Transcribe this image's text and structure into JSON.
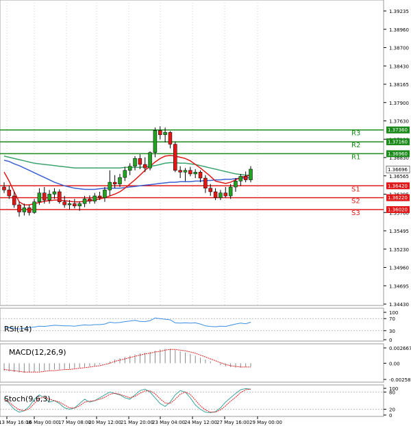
{
  "chart_data": {
    "type": "candlestick",
    "main": {
      "y_ticks": [
        "1.39235",
        "1.38960",
        "1.38700",
        "1.38430",
        "1.38165",
        "1.37900",
        "1.37630",
        "1.37100",
        "1.36830",
        "1.36565",
        "1.36295",
        "1.35760",
        "1.35495",
        "1.35230",
        "1.34960",
        "1.34695",
        "1.34430"
      ],
      "ylim": [
        1.3443,
        1.395
      ],
      "current_price": {
        "label": "1.36696",
        "value": 1.36696
      },
      "levels": [
        {
          "name": "R3",
          "label": "1.37360",
          "value": 1.3736,
          "color": "#1a8a1a"
        },
        {
          "name": "R2",
          "label": "1.37160",
          "value": 1.3716,
          "color": "#1a8a1a"
        },
        {
          "name": "R1",
          "label": "1.36960",
          "value": 1.3696,
          "color": "#1a8a1a"
        },
        {
          "name": "S1",
          "label": "1.36420",
          "value": 1.3642,
          "color": "#e01818"
        },
        {
          "name": "S2",
          "label": "1.36220",
          "value": 1.3622,
          "color": "#e01818"
        },
        {
          "name": "S3",
          "label": "1.36020",
          "value": 1.3602,
          "color": "#e01818"
        }
      ],
      "candles": [
        {
          "o": 1.364,
          "h": 1.3648,
          "l": 1.363,
          "c": 1.3635
        },
        {
          "o": 1.3635,
          "h": 1.3642,
          "l": 1.362,
          "c": 1.3625
        },
        {
          "o": 1.3625,
          "h": 1.3632,
          "l": 1.3605,
          "c": 1.361
        },
        {
          "o": 1.361,
          "h": 1.3615,
          "l": 1.359,
          "c": 1.3598
        },
        {
          "o": 1.3598,
          "h": 1.3612,
          "l": 1.3592,
          "c": 1.3605
        },
        {
          "o": 1.3605,
          "h": 1.361,
          "l": 1.3592,
          "c": 1.3597
        },
        {
          "o": 1.3597,
          "h": 1.362,
          "l": 1.3595,
          "c": 1.3615
        },
        {
          "o": 1.3615,
          "h": 1.3638,
          "l": 1.361,
          "c": 1.363
        },
        {
          "o": 1.363,
          "h": 1.364,
          "l": 1.3612,
          "c": 1.3618
        },
        {
          "o": 1.3618,
          "h": 1.3635,
          "l": 1.3612,
          "c": 1.3628
        },
        {
          "o": 1.3628,
          "h": 1.3638,
          "l": 1.362,
          "c": 1.3632
        },
        {
          "o": 1.3632,
          "h": 1.3636,
          "l": 1.3612,
          "c": 1.3615
        },
        {
          "o": 1.3615,
          "h": 1.3625,
          "l": 1.3605,
          "c": 1.361
        },
        {
          "o": 1.361,
          "h": 1.3618,
          "l": 1.3602,
          "c": 1.3612
        },
        {
          "o": 1.3612,
          "h": 1.362,
          "l": 1.3604,
          "c": 1.3608
        },
        {
          "o": 1.3608,
          "h": 1.3616,
          "l": 1.36,
          "c": 1.3612
        },
        {
          "o": 1.3612,
          "h": 1.3625,
          "l": 1.3606,
          "c": 1.362
        },
        {
          "o": 1.362,
          "h": 1.3626,
          "l": 1.3612,
          "c": 1.3616
        },
        {
          "o": 1.3616,
          "h": 1.363,
          "l": 1.3612,
          "c": 1.3625
        },
        {
          "o": 1.3625,
          "h": 1.3632,
          "l": 1.3618,
          "c": 1.3622
        },
        {
          "o": 1.3622,
          "h": 1.364,
          "l": 1.3615,
          "c": 1.3635
        },
        {
          "o": 1.3635,
          "h": 1.3668,
          "l": 1.3625,
          "c": 1.3648
        },
        {
          "o": 1.3648,
          "h": 1.366,
          "l": 1.3638,
          "c": 1.3645
        },
        {
          "o": 1.3645,
          "h": 1.3662,
          "l": 1.364,
          "c": 1.3656
        },
        {
          "o": 1.3656,
          "h": 1.3674,
          "l": 1.365,
          "c": 1.3668
        },
        {
          "o": 1.3668,
          "h": 1.368,
          "l": 1.366,
          "c": 1.3675
        },
        {
          "o": 1.3675,
          "h": 1.3692,
          "l": 1.3668,
          "c": 1.3688
        },
        {
          "o": 1.3688,
          "h": 1.3695,
          "l": 1.367,
          "c": 1.3678
        },
        {
          "o": 1.3678,
          "h": 1.369,
          "l": 1.3665,
          "c": 1.3672
        },
        {
          "o": 1.3672,
          "h": 1.37,
          "l": 1.3668,
          "c": 1.3698
        },
        {
          "o": 1.3698,
          "h": 1.374,
          "l": 1.369,
          "c": 1.3735
        },
        {
          "o": 1.3735,
          "h": 1.3742,
          "l": 1.372,
          "c": 1.3728
        },
        {
          "o": 1.3728,
          "h": 1.374,
          "l": 1.3715,
          "c": 1.3732
        },
        {
          "o": 1.3732,
          "h": 1.3734,
          "l": 1.3705,
          "c": 1.3712
        },
        {
          "o": 1.3712,
          "h": 1.3716,
          "l": 1.3665,
          "c": 1.3668
        },
        {
          "o": 1.3668,
          "h": 1.3675,
          "l": 1.3655,
          "c": 1.3665
        },
        {
          "o": 1.3665,
          "h": 1.3672,
          "l": 1.365,
          "c": 1.3668
        },
        {
          "o": 1.3668,
          "h": 1.3674,
          "l": 1.3658,
          "c": 1.3662
        },
        {
          "o": 1.3662,
          "h": 1.367,
          "l": 1.3655,
          "c": 1.3665
        },
        {
          "o": 1.3665,
          "h": 1.3668,
          "l": 1.3648,
          "c": 1.3655
        },
        {
          "o": 1.3655,
          "h": 1.366,
          "l": 1.363,
          "c": 1.3638
        },
        {
          "o": 1.3638,
          "h": 1.3645,
          "l": 1.3625,
          "c": 1.3632
        },
        {
          "o": 1.3632,
          "h": 1.3638,
          "l": 1.3618,
          "c": 1.3622
        },
        {
          "o": 1.3622,
          "h": 1.3635,
          "l": 1.3618,
          "c": 1.363
        },
        {
          "o": 1.363,
          "h": 1.364,
          "l": 1.3622,
          "c": 1.3625
        },
        {
          "o": 1.3625,
          "h": 1.3645,
          "l": 1.362,
          "c": 1.364
        },
        {
          "o": 1.364,
          "h": 1.3655,
          "l": 1.3632,
          "c": 1.365
        },
        {
          "o": 1.365,
          "h": 1.3662,
          "l": 1.3642,
          "c": 1.3658
        },
        {
          "o": 1.3658,
          "h": 1.3666,
          "l": 1.3648,
          "c": 1.3652
        },
        {
          "o": 1.3652,
          "h": 1.3675,
          "l": 1.3648,
          "c": 1.367
        }
      ],
      "ma_red": [
        1.3665,
        1.365,
        1.3632,
        1.3615,
        1.361,
        1.361,
        1.3612,
        1.3614,
        1.3616,
        1.3617,
        1.3618,
        1.3618,
        1.3617,
        1.3616,
        1.3615,
        1.3615,
        1.3616,
        1.3617,
        1.3618,
        1.362,
        1.3622,
        1.3625,
        1.3628,
        1.3632,
        1.3638,
        1.3645,
        1.3652,
        1.366,
        1.3668,
        1.3675,
        1.3682,
        1.3688,
        1.3692,
        1.3693,
        1.3692,
        1.369,
        1.3688,
        1.3684,
        1.3678,
        1.3672,
        1.3665,
        1.3658,
        1.365,
        1.3648,
        1.3646,
        1.3648,
        1.3652,
        1.3656,
        1.3658,
        1.366
      ],
      "ma_green": [
        1.3692,
        1.369,
        1.3688,
        1.3686,
        1.3684,
        1.3682,
        1.368,
        1.3679,
        1.3678,
        1.3677,
        1.3676,
        1.3675,
        1.3674,
        1.3673,
        1.3672,
        1.3672,
        1.3672,
        1.3672,
        1.3672,
        1.3672,
        1.3672,
        1.3672,
        1.3672,
        1.3672,
        1.3673,
        1.3673,
        1.3673,
        1.3673,
        1.3674,
        1.3675,
        1.3676,
        1.3678,
        1.368,
        1.3681,
        1.3681,
        1.368,
        1.368,
        1.3679,
        1.3678,
        1.3676,
        1.3674,
        1.3672,
        1.367,
        1.3668,
        1.3666,
        1.3664,
        1.3662,
        1.3661,
        1.366,
        1.366
      ],
      "ma_blue": [
        1.3685,
        1.3683,
        1.3679,
        1.3676,
        1.3672,
        1.3668,
        1.3664,
        1.366,
        1.3656,
        1.3652,
        1.3648,
        1.3645,
        1.3642,
        1.364,
        1.3638,
        1.3637,
        1.3636,
        1.3636,
        1.3636,
        1.3637,
        1.3638,
        1.3638,
        1.3638,
        1.3638,
        1.3639,
        1.364,
        1.3641,
        1.3642,
        1.3643,
        1.3644,
        1.3645,
        1.3646,
        1.3647,
        1.3648,
        1.3648,
        1.3649,
        1.3649,
        1.3649,
        1.365,
        1.365,
        1.3651,
        1.3651,
        1.3652,
        1.3652,
        1.3653,
        1.3653,
        1.3654,
        1.3655,
        1.3655,
        1.3656
      ]
    },
    "rsi": {
      "title": "RSI(14)",
      "y_ticks": [
        "100",
        "70",
        "30",
        "0"
      ],
      "ylim": [
        0,
        100
      ],
      "values": [
        42,
        40,
        38,
        36,
        38,
        40,
        42,
        45,
        44,
        46,
        48,
        47,
        46,
        46,
        45,
        47,
        49,
        48,
        50,
        50,
        52,
        58,
        56,
        57,
        60,
        62,
        64,
        61,
        60,
        63,
        72,
        70,
        68,
        66,
        56,
        55,
        56,
        55,
        56,
        52,
        46,
        44,
        43,
        45,
        44,
        48,
        52,
        55,
        53,
        58
      ]
    },
    "macd": {
      "title": "MACD(12,26,9)",
      "y_ticks": [
        "0.002667",
        "0.00",
        "-0.002586"
      ],
      "ylim": [
        -0.002586,
        0.002667
      ],
      "histogram": [
        -0.0012,
        -0.0013,
        -0.0014,
        -0.0015,
        -0.0015,
        -0.0015,
        -0.0014,
        -0.0013,
        -0.0012,
        -0.0011,
        -0.001,
        -0.001,
        -0.0009,
        -0.0009,
        -0.0008,
        -0.0007,
        -0.0006,
        -0.0005,
        -0.0004,
        -0.0002,
        0.0,
        0.0003,
        0.0006,
        0.0008,
        0.001,
        0.0012,
        0.0014,
        0.0016,
        0.0017,
        0.0018,
        0.002,
        0.0022,
        0.0023,
        0.0023,
        0.0021,
        0.0019,
        0.0017,
        0.0015,
        0.0012,
        0.0009,
        0.0006,
        0.0003,
        0.0,
        -0.0003,
        -0.0005,
        -0.0006,
        -0.0007,
        -0.0007,
        -0.0006,
        -0.0005
      ],
      "signal": [
        -0.001,
        -0.0011,
        -0.0012,
        -0.0013,
        -0.0014,
        -0.0014,
        -0.0014,
        -0.0014,
        -0.0013,
        -0.0012,
        -0.0012,
        -0.0011,
        -0.001,
        -0.001,
        -0.0009,
        -0.0008,
        -0.0007,
        -0.0006,
        -0.0005,
        -0.0004,
        -0.0002,
        0.0,
        0.0003,
        0.0005,
        0.0007,
        0.0009,
        0.0011,
        0.0013,
        0.0015,
        0.0016,
        0.0018,
        0.0019,
        0.0021,
        0.0022,
        0.0022,
        0.0021,
        0.002,
        0.0018,
        0.0016,
        0.0013,
        0.001,
        0.0007,
        0.0004,
        0.0001,
        -0.0002,
        -0.0004,
        -0.0005,
        -0.0006,
        -0.0006,
        -0.0006
      ]
    },
    "stoch": {
      "title": "Stoch(9,6,3)",
      "y_ticks": [
        "100",
        "80",
        "20",
        "0"
      ],
      "ylim": [
        0,
        100
      ],
      "k": [
        60,
        40,
        20,
        10,
        15,
        30,
        55,
        70,
        60,
        45,
        50,
        40,
        25,
        20,
        25,
        40,
        55,
        45,
        50,
        60,
        70,
        80,
        75,
        70,
        60,
        55,
        70,
        85,
        90,
        80,
        60,
        40,
        30,
        45,
        70,
        85,
        80,
        60,
        35,
        20,
        10,
        8,
        12,
        25,
        45,
        60,
        75,
        88,
        92,
        90
      ],
      "d": [
        55,
        45,
        30,
        18,
        15,
        22,
        40,
        58,
        62,
        55,
        50,
        45,
        35,
        25,
        24,
        32,
        45,
        48,
        50,
        55,
        62,
        72,
        76,
        72,
        66,
        60,
        65,
        76,
        84,
        84,
        74,
        56,
        42,
        40,
        55,
        72,
        80,
        72,
        52,
        32,
        18,
        10,
        10,
        18,
        32,
        48,
        62,
        78,
        88,
        90
      ]
    },
    "x_labels": [
      "13 May 16:00",
      "16 May 00:00",
      "17 May 08:00",
      "20 May 12:00",
      "21 May 20:00",
      "23 May 04:00",
      "24 May 12:00",
      "27 May 16:00",
      "29 May 00:00"
    ]
  },
  "colors": {
    "bull": "#22a122",
    "bear": "#e01818",
    "ma_red": "#e01818",
    "ma_green": "#3aa36b",
    "ma_blue": "#3a5fd0",
    "rsi_line": "#3a8ee6",
    "macd_hist": "#888888",
    "macd_signal": "#e01818",
    "stoch_k": "#3aa39c",
    "stoch_d": "#e01818"
  }
}
